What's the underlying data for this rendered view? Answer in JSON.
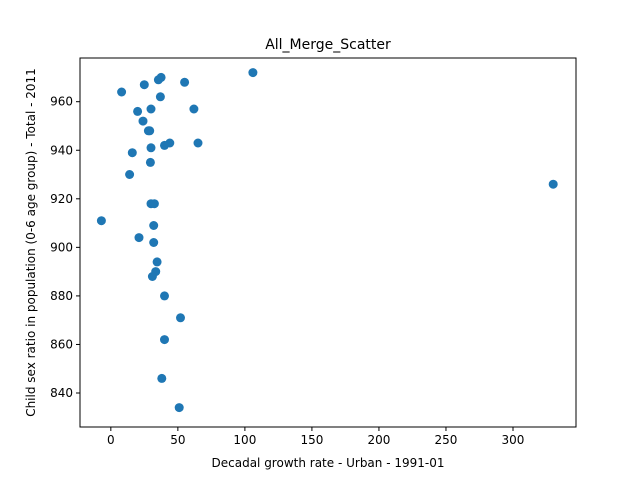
{
  "chart_data": {
    "type": "scatter",
    "title": "All_Merge_Scatter",
    "xlabel": "Decadal growth rate - Urban - 1991-01",
    "ylabel": "Child sex ratio in population (0-6 age group) - Total - 2011",
    "xlim": [
      -23,
      347
    ],
    "ylim": [
      826,
      978
    ],
    "xticks": [
      0,
      50,
      100,
      150,
      200,
      250,
      300
    ],
    "yticks": [
      840,
      860,
      880,
      900,
      920,
      940,
      960
    ],
    "grid": false,
    "marker_color": "#1f77b4",
    "points": [
      {
        "x": 106,
        "y": 972
      },
      {
        "x": 37.5,
        "y": 970
      },
      {
        "x": 35.5,
        "y": 969
      },
      {
        "x": 55,
        "y": 968
      },
      {
        "x": 25,
        "y": 967
      },
      {
        "x": 8,
        "y": 964
      },
      {
        "x": 37,
        "y": 962
      },
      {
        "x": 30,
        "y": 957
      },
      {
        "x": 62,
        "y": 957
      },
      {
        "x": 20,
        "y": 956
      },
      {
        "x": 24,
        "y": 952
      },
      {
        "x": 29,
        "y": 948
      },
      {
        "x": 28,
        "y": 948
      },
      {
        "x": 65,
        "y": 943
      },
      {
        "x": 44,
        "y": 943
      },
      {
        "x": 40,
        "y": 942
      },
      {
        "x": 30,
        "y": 941
      },
      {
        "x": 16,
        "y": 939
      },
      {
        "x": 29.5,
        "y": 935
      },
      {
        "x": 14,
        "y": 930
      },
      {
        "x": 330,
        "y": 926
      },
      {
        "x": 30,
        "y": 918
      },
      {
        "x": 32.5,
        "y": 918
      },
      {
        "x": -7,
        "y": 911
      },
      {
        "x": 32,
        "y": 909
      },
      {
        "x": 21,
        "y": 904
      },
      {
        "x": 32,
        "y": 902
      },
      {
        "x": 34.5,
        "y": 894
      },
      {
        "x": 33.5,
        "y": 890
      },
      {
        "x": 31,
        "y": 888
      },
      {
        "x": 40,
        "y": 880
      },
      {
        "x": 52,
        "y": 871
      },
      {
        "x": 40,
        "y": 862
      },
      {
        "x": 38,
        "y": 846
      },
      {
        "x": 51,
        "y": 834
      }
    ]
  }
}
